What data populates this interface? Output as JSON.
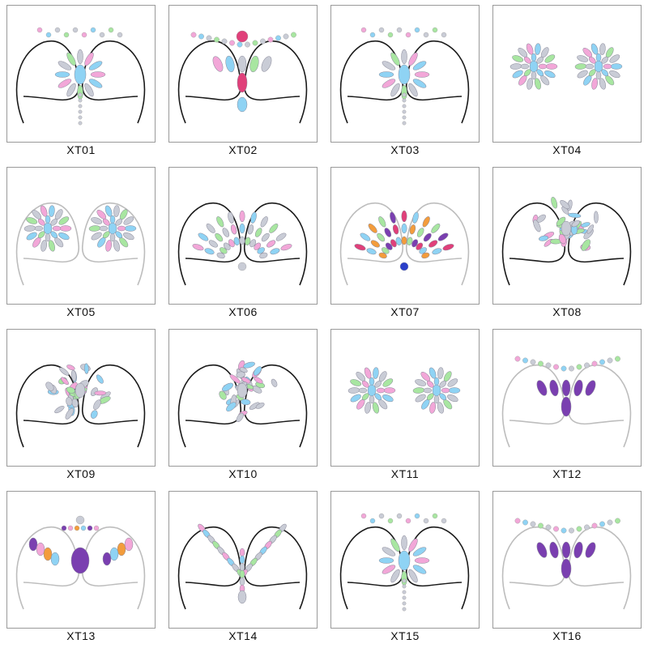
{
  "products": [
    {
      "code": "XT01",
      "outline": "dark",
      "pattern": "sunburst"
    },
    {
      "code": "XT02",
      "outline": "dark",
      "pattern": "necklace"
    },
    {
      "code": "XT03",
      "outline": "dark",
      "pattern": "star"
    },
    {
      "code": "XT04",
      "outline": "none",
      "pattern": "pasties-leaf"
    },
    {
      "code": "XT05",
      "outline": "light",
      "pattern": "pasties-round"
    },
    {
      "code": "XT06",
      "outline": "dark",
      "pattern": "fan"
    },
    {
      "code": "XT07",
      "outline": "light",
      "pattern": "colorful-fan"
    },
    {
      "code": "XT08",
      "outline": "dark",
      "pattern": "diamond"
    },
    {
      "code": "XT09",
      "outline": "dark",
      "pattern": "diamond"
    },
    {
      "code": "XT10",
      "outline": "dark",
      "pattern": "diamond"
    },
    {
      "code": "XT11",
      "outline": "none",
      "pattern": "pasties-lotus"
    },
    {
      "code": "XT12",
      "outline": "light",
      "pattern": "purple-necklace"
    },
    {
      "code": "XT13",
      "outline": "light",
      "pattern": "colorful-drops"
    },
    {
      "code": "XT14",
      "outline": "dark",
      "pattern": "v-shape"
    },
    {
      "code": "XT15",
      "outline": "dark",
      "pattern": "star"
    },
    {
      "code": "XT16",
      "outline": "light",
      "pattern": "purple-necklace"
    }
  ],
  "colors": {
    "outline_dark": "#1a1a1a",
    "outline_light": "#bdbdbd",
    "gem_silver": "#c9ccd6",
    "gem_holo_pink": "#f2a7d8",
    "gem_holo_blue": "#8fd3f4",
    "gem_holo_green": "#a8e6a1",
    "gem_purple": "#7a3fb0",
    "gem_pink": "#e0407a",
    "gem_blue": "#2a3fc9",
    "gem_orange": "#f39c3c"
  }
}
